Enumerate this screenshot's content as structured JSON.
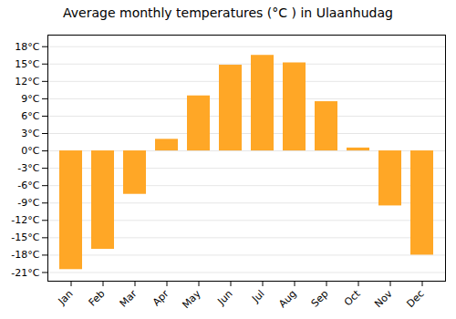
{
  "chart_data": {
    "type": "bar",
    "title": "Average monthly temperatures (°C ) in Ulaanhudag",
    "categories": [
      "Jan",
      "Feb",
      "Mar",
      "Apr",
      "May",
      "Jun",
      "Jul",
      "Aug",
      "Sep",
      "Oct",
      "Nov",
      "Dec"
    ],
    "values": [
      -20.5,
      -17,
      -7.5,
      2,
      9.5,
      14.8,
      16.5,
      15.2,
      8.5,
      0.5,
      -9.5,
      -18
    ],
    "color": "#FFA726",
    "ylim": [
      -22.5,
      20
    ],
    "yticks": [
      {
        "value": -21,
        "label": "-21°C"
      },
      {
        "value": -18,
        "label": "-18°C"
      },
      {
        "value": -15,
        "label": "-15°C"
      },
      {
        "value": -12,
        "label": "-12°C"
      },
      {
        "value": -9,
        "label": "-9°C"
      },
      {
        "value": -6,
        "label": "-6°C"
      },
      {
        "value": -3,
        "label": "-3°C"
      },
      {
        "value": 0,
        "label": "0°C"
      },
      {
        "value": 3,
        "label": "3°C"
      },
      {
        "value": 6,
        "label": "6°C"
      },
      {
        "value": 9,
        "label": "9°C"
      },
      {
        "value": 12,
        "label": "12°C"
      },
      {
        "value": 15,
        "label": "15°C"
      },
      {
        "value": 18,
        "label": "18°C"
      }
    ],
    "grid": true
  }
}
